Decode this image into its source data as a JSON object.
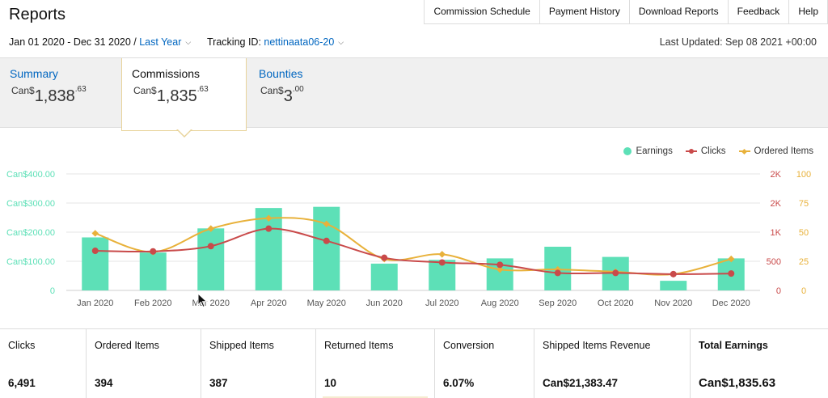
{
  "header": {
    "title": "Reports",
    "nav": [
      "Commission Schedule",
      "Payment History",
      "Download Reports",
      "Feedback",
      "Help"
    ]
  },
  "filters": {
    "date_range": "Jan 01 2020 - Dec 31 2020",
    "separator": " / ",
    "period": "Last Year",
    "tracking_label": "Tracking ID:",
    "tracking_id": "nettinaata06-20",
    "last_updated": "Last Updated: Sep 08 2021 +00:00"
  },
  "tabs": {
    "summary": {
      "label": "Summary",
      "currency": "Can$",
      "whole": "1,838",
      "cents": ".63"
    },
    "commissions": {
      "label": "Commissions",
      "currency": "Can$",
      "whole": "1,835",
      "cents": ".63"
    },
    "bounties": {
      "label": "Bounties",
      "currency": "Can$",
      "whole": "3",
      "cents": ".00"
    }
  },
  "legend": {
    "earnings": "Earnings",
    "clicks": "Clicks",
    "ordered": "Ordered Items"
  },
  "colors": {
    "earnings": "#5de0b7",
    "clicks": "#c94a4a",
    "ordered": "#e8b13a",
    "link": "#0066c0"
  },
  "chart_data": {
    "type": "bar",
    "categories": [
      "Jan 2020",
      "Feb 2020",
      "Mar 2020",
      "Apr 2020",
      "May 2020",
      "Jun 2020",
      "Jul 2020",
      "Aug 2020",
      "Sep 2020",
      "Oct 2020",
      "Nov 2020",
      "Dec 2020"
    ],
    "series": [
      {
        "name": "Earnings",
        "type": "bar",
        "axis": "left",
        "values": [
          182,
          130,
          213,
          283,
          287,
          92,
          105,
          110,
          150,
          115,
          33,
          110
        ]
      },
      {
        "name": "Clicks",
        "type": "line",
        "axis": "right-1",
        "values": [
          680,
          670,
          760,
          1060,
          850,
          560,
          480,
          440,
          300,
          300,
          280,
          290
        ]
      },
      {
        "name": "Ordered Items",
        "type": "line",
        "axis": "right-2",
        "values": [
          49,
          33,
          53,
          62,
          57,
          27,
          31,
          18,
          18,
          16,
          14,
          27
        ]
      }
    ],
    "left_axis": {
      "ticks": [
        "0",
        "Can$100.00",
        "Can$200.00",
        "Can$300.00",
        "Can$400.00"
      ],
      "range": [
        0,
        400
      ]
    },
    "right_axis_1": {
      "ticks": [
        "0",
        "500",
        "1K",
        "2K",
        "2K"
      ],
      "range": [
        0,
        2000
      ]
    },
    "right_axis_2": {
      "ticks": [
        "0",
        "25",
        "50",
        "75",
        "100"
      ],
      "range": [
        0,
        100
      ]
    },
    "grid": true,
    "legend_position": "top-right"
  },
  "stats": [
    {
      "label": "Clicks",
      "value": "6,491"
    },
    {
      "label": "Ordered Items",
      "value": "394"
    },
    {
      "label": "Shipped Items",
      "value": "387"
    },
    {
      "label": "Returned Items",
      "value": "10"
    },
    {
      "label": "Conversion",
      "value": "6.07%"
    },
    {
      "label": "Shipped Items Revenue",
      "value": "Can$21,383.47"
    },
    {
      "label": "Total Earnings",
      "value": "Can$1,835.63"
    }
  ]
}
